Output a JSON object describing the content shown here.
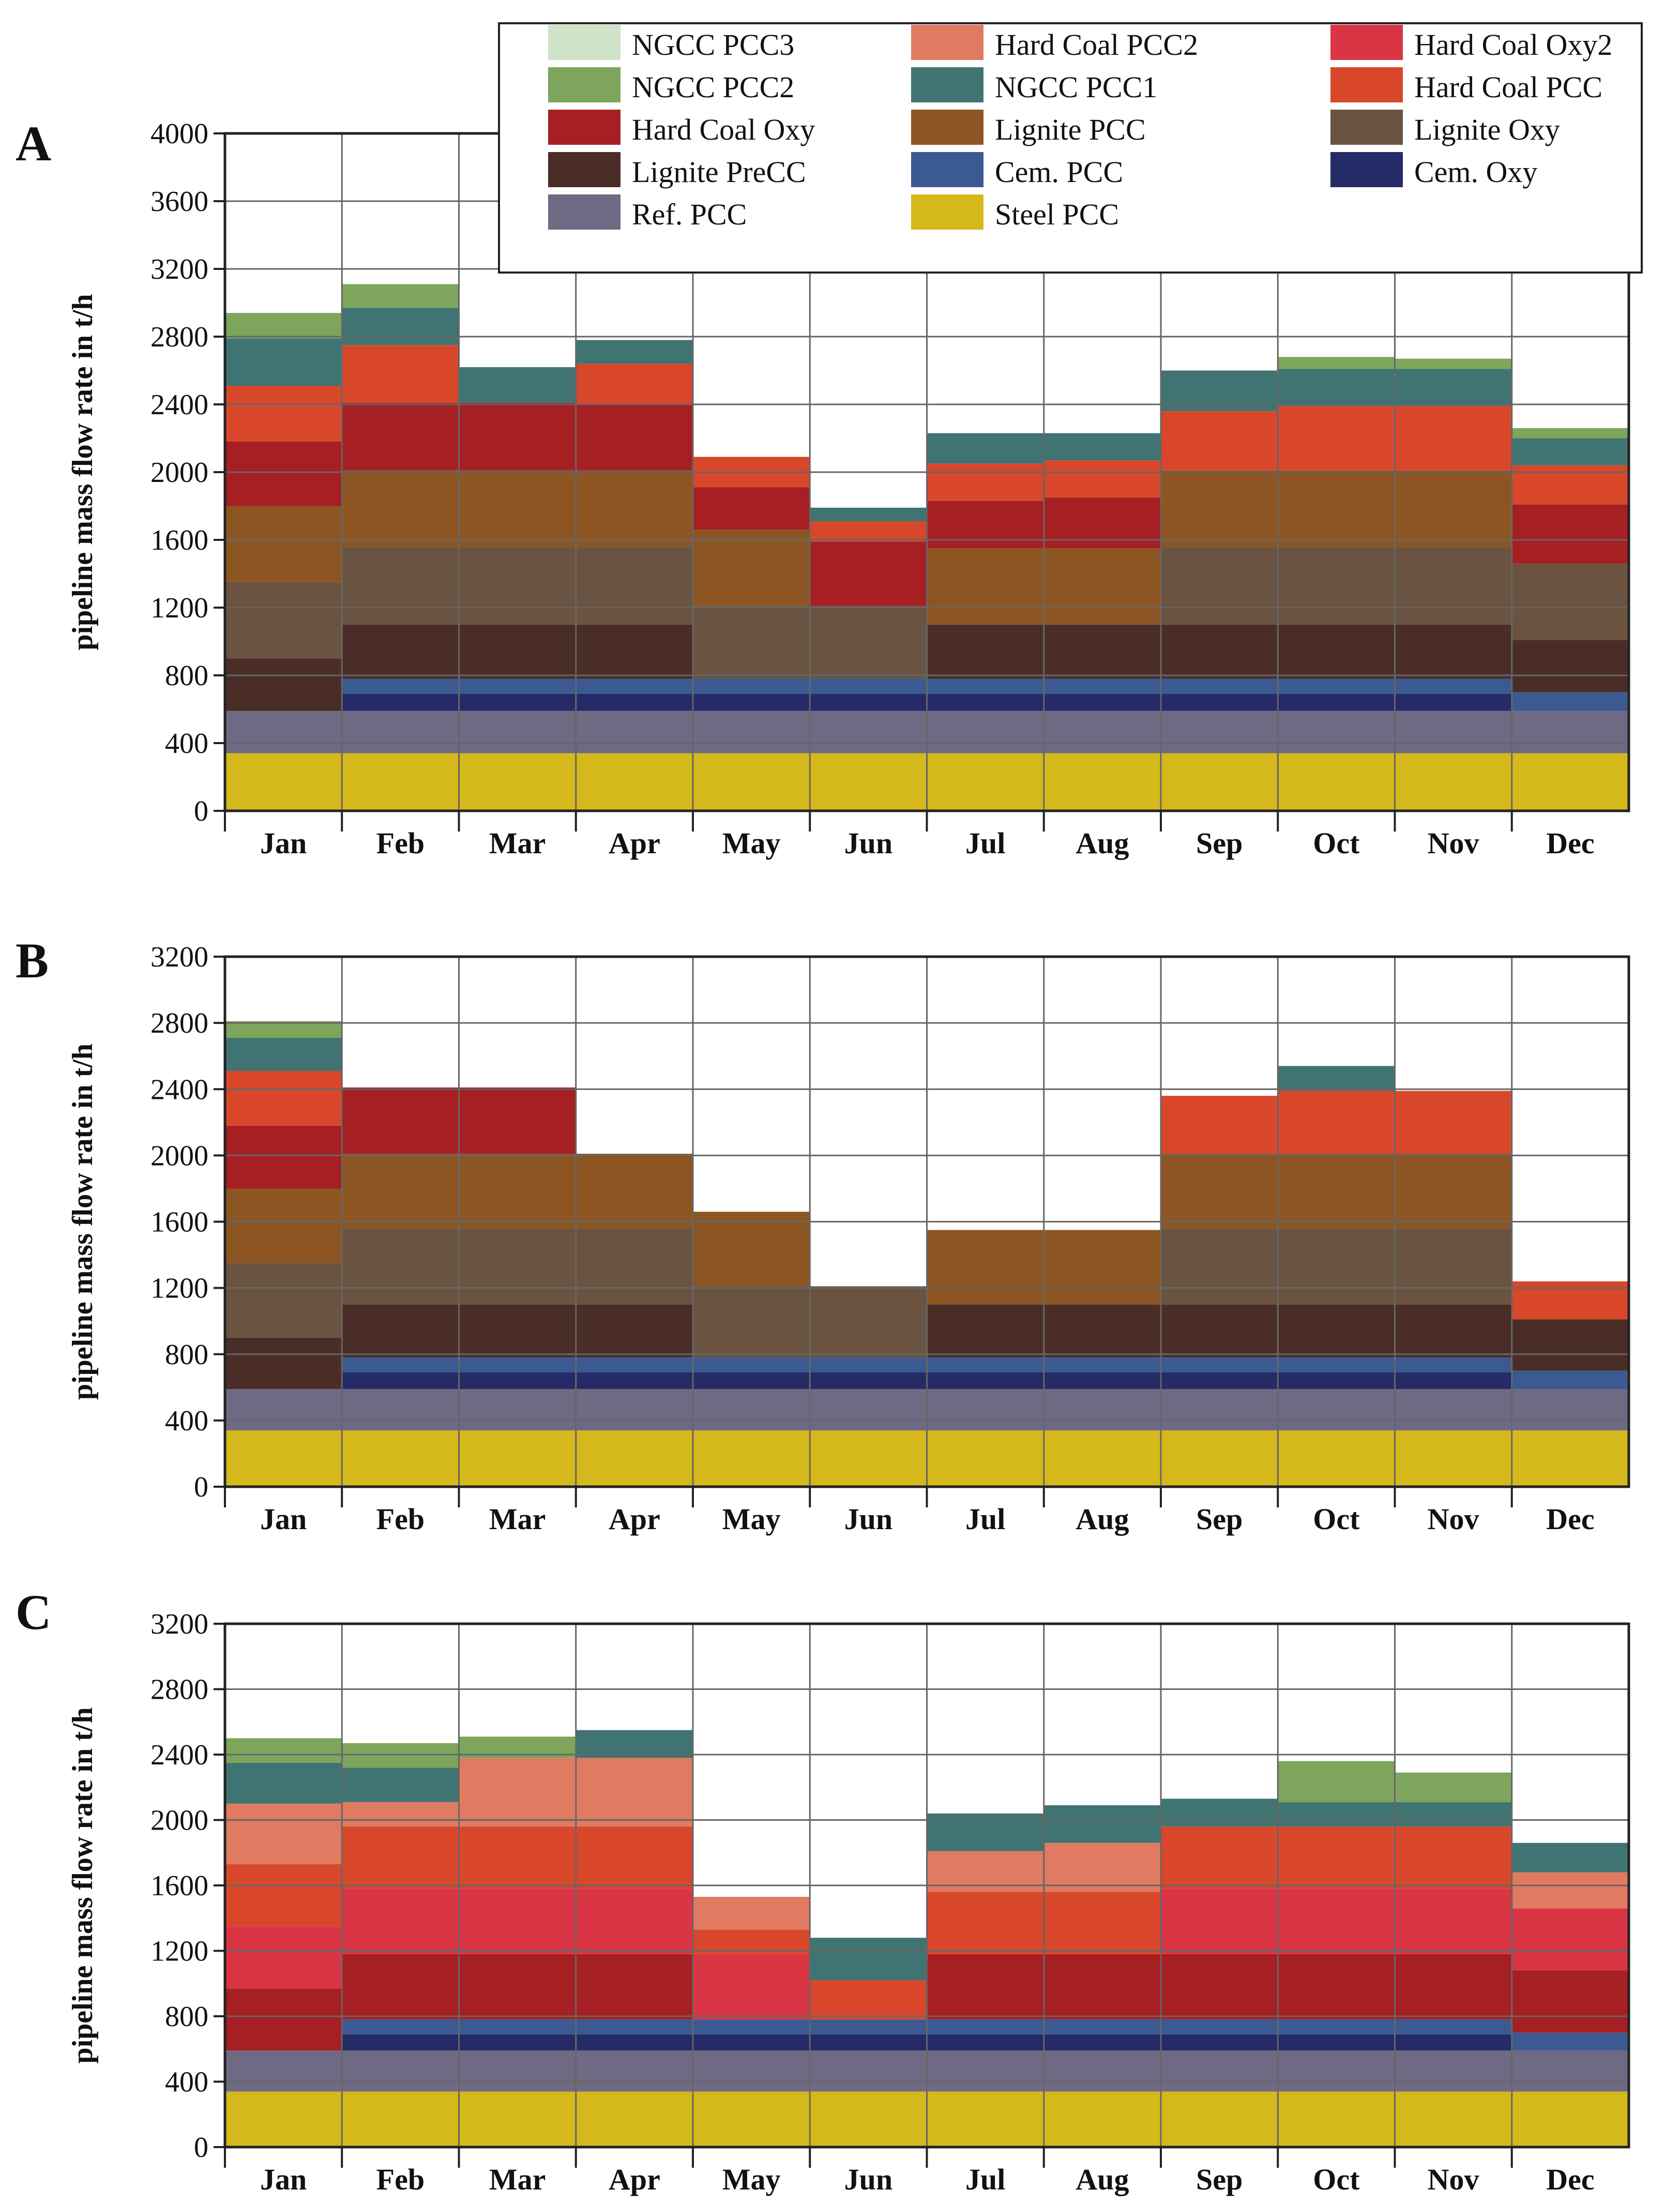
{
  "figure": {
    "title": ""
  },
  "legend": {
    "entries": [
      {
        "key": "ngcc3",
        "label": "NGCC PCC3",
        "color": "#cfe3c6"
      },
      {
        "key": "hcpcc2",
        "label": "Hard Coal PCC2",
        "color": "#e07a60"
      },
      {
        "key": "hcoxy2",
        "label": "Hard Coal Oxy2",
        "color": "#d93545"
      },
      {
        "key": "ngcc2",
        "label": "NGCC PCC2",
        "color": "#7da65c"
      },
      {
        "key": "ngcc1",
        "label": "NGCC PCC1",
        "color": "#3f7472"
      },
      {
        "key": "hcpcc",
        "label": "Hard Coal PCC",
        "color": "#d9472b"
      },
      {
        "key": "hcoxy",
        "label": "Hard Coal Oxy",
        "color": "#a61f22"
      },
      {
        "key": "ligpcc",
        "label": "Lignite PCC",
        "color": "#8c5522"
      },
      {
        "key": "ligoxy",
        "label": "Lignite Oxy",
        "color": "#6a5340"
      },
      {
        "key": "ligpre",
        "label": "Lignite PreCC",
        "color": "#4a2d27"
      },
      {
        "key": "cempcc",
        "label": "Cem. PCC",
        "color": "#3c5a92"
      },
      {
        "key": "cemoxy",
        "label": "Cem. Oxy",
        "color": "#252b66"
      },
      {
        "key": "refpcc",
        "label": "Ref. PCC",
        "color": "#6e6a84"
      },
      {
        "key": "steel",
        "label": "Steel PCC",
        "color": "#d4b81c"
      }
    ]
  },
  "chart_data": [
    {
      "type": "area",
      "panel": "A",
      "title": "",
      "xlabel": "",
      "ylabel": "pipeline mass flow rate in t/h",
      "ylim": [
        0,
        4000
      ],
      "yticks": [
        0,
        400,
        800,
        1200,
        1600,
        2000,
        2400,
        2800,
        3200,
        3600,
        4000
      ],
      "categories": [
        "Jan",
        "Feb",
        "Mar",
        "Apr",
        "May",
        "Jun",
        "Jul",
        "Aug",
        "Sep",
        "Oct",
        "Nov",
        "Dec"
      ],
      "series": [
        {
          "name": "Steel PCC",
          "values": [
            340,
            340,
            340,
            340,
            340,
            340,
            340,
            340,
            340,
            340,
            340,
            340
          ]
        },
        {
          "name": "Ref. PCC",
          "values": [
            250,
            250,
            250,
            250,
            250,
            250,
            250,
            250,
            250,
            250,
            250,
            250
          ]
        },
        {
          "name": "Cem. Oxy",
          "values": [
            0,
            100,
            100,
            100,
            100,
            100,
            100,
            100,
            100,
            100,
            100,
            0
          ]
        },
        {
          "name": "Cem. PCC",
          "values": [
            0,
            90,
            90,
            90,
            90,
            90,
            90,
            90,
            90,
            90,
            90,
            110
          ]
        },
        {
          "name": "Lignite PreCC",
          "values": [
            310,
            320,
            320,
            320,
            0,
            0,
            320,
            320,
            320,
            320,
            320,
            310
          ]
        },
        {
          "name": "Lignite Oxy",
          "values": [
            450,
            460,
            460,
            460,
            430,
            430,
            0,
            0,
            460,
            460,
            460,
            450
          ]
        },
        {
          "name": "Lignite PCC",
          "values": [
            450,
            450,
            450,
            450,
            450,
            0,
            450,
            450,
            450,
            450,
            450,
            0
          ]
        },
        {
          "name": "Hard Coal Oxy",
          "values": [
            380,
            400,
            400,
            390,
            250,
            380,
            280,
            300,
            0,
            0,
            0,
            350
          ]
        },
        {
          "name": "Hard Coal PCC",
          "values": [
            330,
            340,
            0,
            240,
            180,
            120,
            220,
            220,
            350,
            380,
            380,
            230
          ]
        },
        {
          "name": "NGCC PCC1",
          "values": [
            280,
            220,
            210,
            140,
            0,
            80,
            180,
            160,
            240,
            220,
            220,
            160
          ]
        },
        {
          "name": "NGCC PCC2",
          "values": [
            150,
            140,
            0,
            0,
            0,
            0,
            0,
            0,
            0,
            70,
            60,
            60
          ]
        },
        {
          "name": "NGCC PCC3",
          "values": [
            0,
            0,
            0,
            0,
            0,
            0,
            0,
            0,
            0,
            0,
            0,
            0
          ]
        }
      ]
    },
    {
      "type": "area",
      "panel": "B",
      "title": "",
      "xlabel": "",
      "ylabel": "pipeline mass flow rate in t/h",
      "ylim": [
        0,
        3200
      ],
      "yticks": [
        0,
        400,
        800,
        1200,
        1600,
        2000,
        2400,
        2800,
        3200
      ],
      "categories": [
        "Jan",
        "Feb",
        "Mar",
        "Apr",
        "May",
        "Jun",
        "Jul",
        "Aug",
        "Sep",
        "Oct",
        "Nov",
        "Dec"
      ],
      "series": [
        {
          "name": "Steel PCC",
          "values": [
            340,
            340,
            340,
            340,
            340,
            340,
            340,
            340,
            340,
            340,
            340,
            340
          ]
        },
        {
          "name": "Ref. PCC",
          "values": [
            250,
            250,
            250,
            250,
            250,
            250,
            250,
            250,
            250,
            250,
            250,
            250
          ]
        },
        {
          "name": "Cem. Oxy",
          "values": [
            0,
            100,
            100,
            100,
            100,
            100,
            100,
            100,
            100,
            100,
            100,
            0
          ]
        },
        {
          "name": "Cem. PCC",
          "values": [
            0,
            90,
            90,
            90,
            90,
            90,
            90,
            90,
            90,
            90,
            90,
            110
          ]
        },
        {
          "name": "Lignite PreCC",
          "values": [
            310,
            320,
            320,
            320,
            0,
            0,
            320,
            320,
            320,
            320,
            320,
            310
          ]
        },
        {
          "name": "Lignite Oxy",
          "values": [
            450,
            460,
            460,
            460,
            430,
            430,
            0,
            0,
            460,
            460,
            460,
            0
          ]
        },
        {
          "name": "Lignite PCC",
          "values": [
            450,
            450,
            450,
            450,
            450,
            0,
            450,
            450,
            450,
            450,
            450,
            0
          ]
        },
        {
          "name": "Hard Coal Oxy",
          "values": [
            380,
            400,
            400,
            0,
            0,
            0,
            0,
            0,
            0,
            0,
            0,
            0
          ]
        },
        {
          "name": "Hard Coal PCC",
          "values": [
            330,
            0,
            0,
            0,
            0,
            0,
            0,
            0,
            350,
            380,
            380,
            230
          ]
        },
        {
          "name": "NGCC PCC1",
          "values": [
            200,
            0,
            0,
            0,
            0,
            0,
            0,
            0,
            0,
            150,
            0,
            0
          ]
        },
        {
          "name": "NGCC PCC2",
          "values": [
            100,
            0,
            0,
            0,
            0,
            0,
            0,
            0,
            0,
            0,
            0,
            0
          ]
        },
        {
          "name": "NGCC PCC3",
          "values": [
            0,
            0,
            0,
            0,
            0,
            0,
            0,
            0,
            0,
            0,
            0,
            0
          ]
        }
      ]
    },
    {
      "type": "area",
      "panel": "C",
      "title": "",
      "xlabel": "",
      "ylabel": "pipeline mass flow rate in t/h",
      "ylim": [
        0,
        3200
      ],
      "yticks": [
        0,
        400,
        800,
        1200,
        1600,
        2000,
        2400,
        2800,
        3200
      ],
      "categories": [
        "Jan",
        "Feb",
        "Mar",
        "Apr",
        "May",
        "Jun",
        "Jul",
        "Aug",
        "Sep",
        "Oct",
        "Nov",
        "Dec"
      ],
      "series": [
        {
          "name": "Steel PCC",
          "values": [
            340,
            340,
            340,
            340,
            340,
            340,
            340,
            340,
            340,
            340,
            340,
            340
          ]
        },
        {
          "name": "Ref. PCC",
          "values": [
            250,
            250,
            250,
            250,
            250,
            250,
            250,
            250,
            250,
            250,
            250,
            250
          ]
        },
        {
          "name": "Cem. Oxy",
          "values": [
            0,
            100,
            100,
            100,
            100,
            100,
            100,
            100,
            100,
            100,
            100,
            0
          ]
        },
        {
          "name": "Cem. PCC",
          "values": [
            0,
            90,
            90,
            90,
            90,
            90,
            90,
            90,
            90,
            90,
            90,
            110
          ]
        },
        {
          "name": "Hard Coal Oxy",
          "values": [
            380,
            400,
            400,
            400,
            0,
            0,
            400,
            400,
            400,
            400,
            400,
            380
          ]
        },
        {
          "name": "Hard Coal Oxy2",
          "values": [
            380,
            400,
            400,
            400,
            400,
            0,
            0,
            0,
            400,
            400,
            400,
            380
          ]
        },
        {
          "name": "Hard Coal PCC",
          "values": [
            380,
            380,
            380,
            380,
            150,
            240,
            380,
            380,
            380,
            380,
            380,
            0
          ]
        },
        {
          "name": "Hard Coal PCC2",
          "values": [
            370,
            150,
            420,
            420,
            200,
            0,
            250,
            300,
            0,
            0,
            0,
            220
          ]
        },
        {
          "name": "NGCC PCC1",
          "values": [
            250,
            210,
            0,
            170,
            0,
            260,
            230,
            230,
            170,
            150,
            150,
            180
          ]
        },
        {
          "name": "NGCC PCC2",
          "values": [
            150,
            150,
            130,
            0,
            0,
            0,
            0,
            0,
            0,
            250,
            180,
            0
          ]
        },
        {
          "name": "NGCC PCC3",
          "values": [
            0,
            0,
            0,
            0,
            0,
            0,
            0,
            0,
            0,
            0,
            0,
            0
          ]
        }
      ]
    }
  ]
}
